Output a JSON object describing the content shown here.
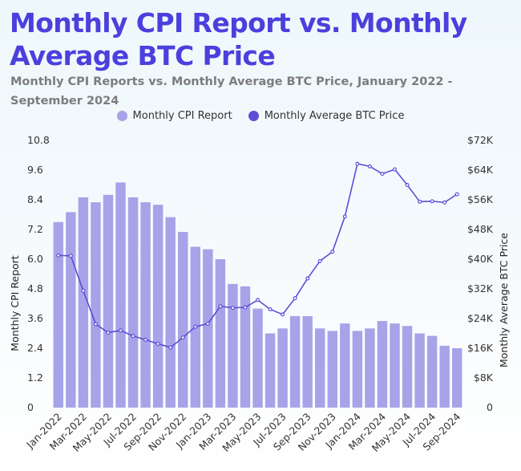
{
  "header": {
    "title": "Monthly CPI Report vs. Monthly Average BTC Price",
    "subtitle": "Monthly CPI Reports vs. Monthly Average BTC Price, January 2022 - September 2024"
  },
  "colors": {
    "bar": "#a6a3e8",
    "line": "#5b4fd6",
    "title": "#4b40dd"
  },
  "chart_data": {
    "type": "bar",
    "title": "Monthly CPI Report vs. Monthly Average BTC Price",
    "subtitle": "Monthly CPI Reports vs. Monthly Average BTC Price, January 2022 - September 2024",
    "legend": {
      "position": "top-center",
      "entries": [
        "Monthly CPI Report",
        "Monthly Average BTC Price"
      ]
    },
    "categories": [
      "Jan-2022",
      "Feb-2022",
      "Mar-2022",
      "Apr-2022",
      "May-2022",
      "Jun-2022",
      "Jul-2022",
      "Aug-2022",
      "Sep-2022",
      "Oct-2022",
      "Nov-2022",
      "Dec-2022",
      "Jan-2023",
      "Feb-2023",
      "Mar-2023",
      "Apr-2023",
      "May-2023",
      "Jun-2023",
      "Jul-2023",
      "Aug-2023",
      "Sep-2023",
      "Oct-2023",
      "Nov-2023",
      "Dec-2023",
      "Jan-2024",
      "Feb-2024",
      "Mar-2024",
      "Apr-2024",
      "May-2024",
      "Jun-2024",
      "Jul-2024",
      "Aug-2024",
      "Sep-2024"
    ],
    "x_tick_labels": [
      "Jan-2022",
      "Mar-2022",
      "May-2022",
      "Jul-2022",
      "Sep-2022",
      "Nov-2022",
      "Jan-2023",
      "Mar-2023",
      "May-2023",
      "Jul-2023",
      "Sep-2023",
      "Nov-2023",
      "Jan-2024",
      "Mar-2024",
      "May-2024",
      "Jul-2024",
      "Sep-2024"
    ],
    "series": [
      {
        "name": "Monthly CPI Report",
        "type": "bar",
        "axis": "left",
        "values": [
          7.5,
          7.9,
          8.5,
          8.3,
          8.6,
          9.1,
          8.5,
          8.3,
          8.2,
          7.7,
          7.1,
          6.5,
          6.4,
          6.0,
          5.0,
          4.9,
          4.0,
          3.0,
          3.2,
          3.7,
          3.7,
          3.2,
          3.1,
          3.4,
          3.1,
          3.2,
          3.5,
          3.4,
          3.3,
          3.0,
          2.9,
          2.5,
          2.4
        ]
      },
      {
        "name": "Monthly Average BTC Price",
        "type": "line",
        "axis": "right",
        "values": [
          41000,
          40900,
          31500,
          22500,
          20200,
          20800,
          19300,
          18300,
          17200,
          16200,
          18900,
          21800,
          22600,
          27300,
          26900,
          27000,
          29000,
          26500,
          25100,
          29500,
          34800,
          39500,
          42000,
          51500,
          65700,
          65000,
          63000,
          64200,
          60000,
          55500,
          55600,
          55300,
          57500
        ]
      }
    ],
    "ylabel": "Monthly CPI Report",
    "ylim": [
      0,
      10.8
    ],
    "yticks": [
      "0",
      "1.2",
      "2.4",
      "3.6",
      "4.8",
      "6.0",
      "7.2",
      "8.4",
      "9.6",
      "10.8"
    ],
    "y2label": "Monthly Average BTC Price",
    "y2lim": [
      0,
      72000
    ],
    "y2ticks": [
      "0",
      "$8K",
      "$16K",
      "$24K",
      "$32K",
      "$40K",
      "$48K",
      "$56K",
      "$64K",
      "$72K"
    ],
    "grid": false
  }
}
